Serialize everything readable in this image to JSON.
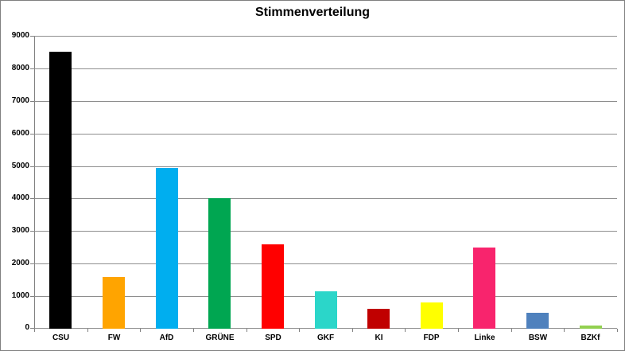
{
  "title": "Stimmenverteilung",
  "chart_data": {
    "type": "bar",
    "title": "Stimmenverteilung",
    "xlabel": "",
    "ylabel": "",
    "categories": [
      "CSU",
      "FW",
      "AfD",
      "GRÜNE",
      "SPD",
      "GKF",
      "KI",
      "FDP",
      "Linke",
      "BSW",
      "BZKf"
    ],
    "values": [
      8500,
      1600,
      4950,
      4000,
      2600,
      1150,
      600,
      800,
      2500,
      500,
      100
    ],
    "bar_colors": [
      "#000000",
      "#FFA400",
      "#00AEEF",
      "#00A651",
      "#FF0000",
      "#2BD6C9",
      "#C00000",
      "#FFFF00",
      "#F8246D",
      "#4F81BD",
      "#92D050"
    ],
    "ylim": [
      0,
      9000
    ],
    "yticks": [
      0,
      1000,
      2000,
      3000,
      4000,
      5000,
      6000,
      7000,
      8000,
      9000
    ],
    "grid": true,
    "legend": false
  },
  "colors": {
    "background": "#FFFFFF",
    "border": "#808080",
    "gridline": "#8E8E8E",
    "axis": "#808080",
    "text": "#000000"
  }
}
